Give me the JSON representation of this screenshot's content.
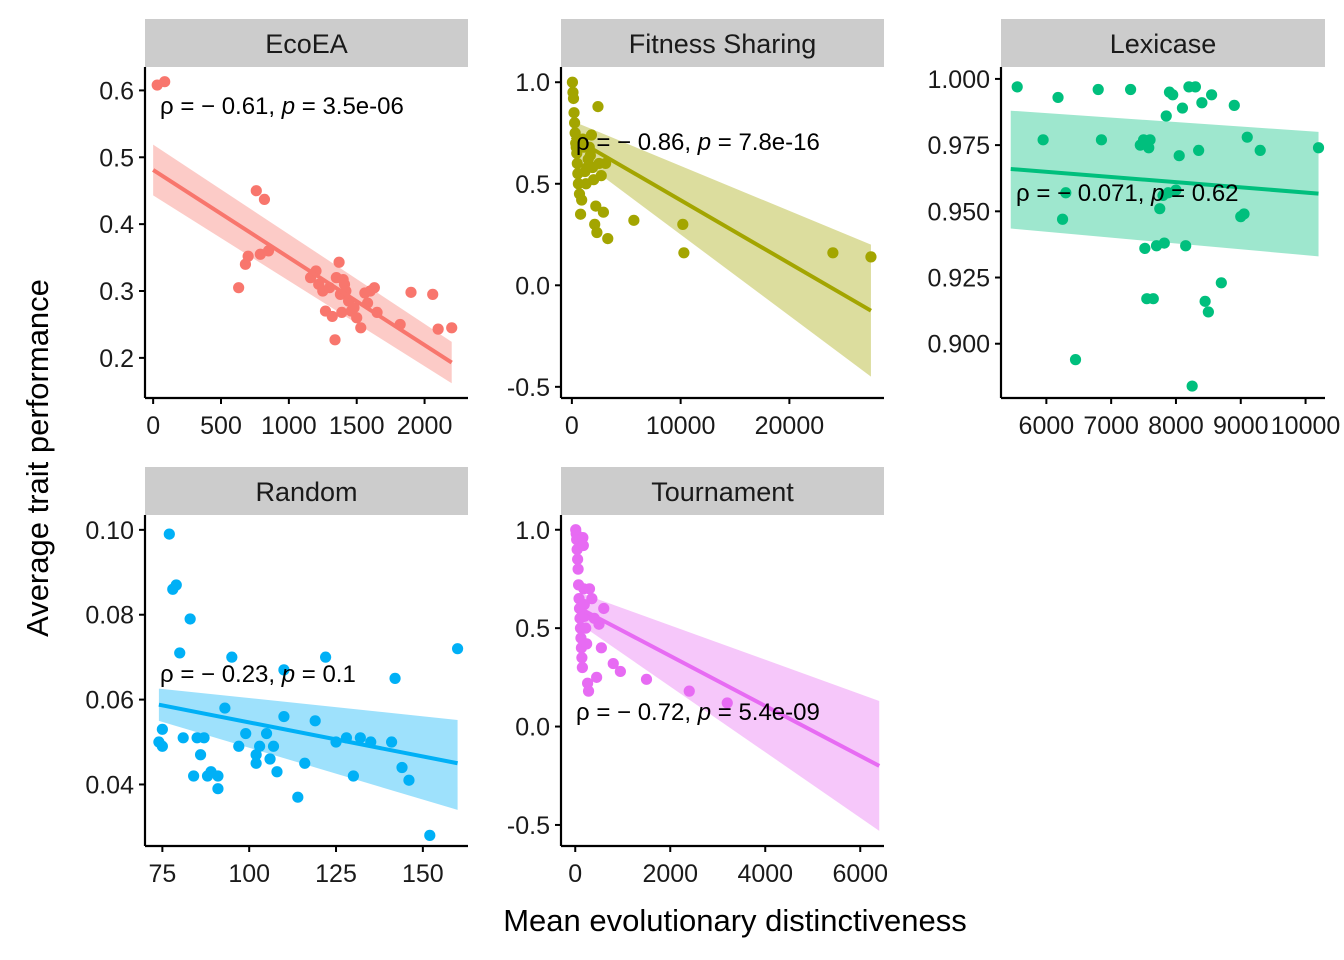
{
  "figure": {
    "xlabel": "Mean evolutionary distinctiveness",
    "ylabel": "Average trait performance",
    "strip_color": "#cccccc"
  },
  "chart_data": [
    {
      "type": "scatter",
      "panel": "EcoEA",
      "color": "#F8766D",
      "xlim": [
        -60,
        2320
      ],
      "ylim": [
        0.14,
        0.635
      ],
      "xticks": [
        0,
        500,
        1000,
        1500,
        2000
      ],
      "yticks": [
        0.2,
        0.3,
        0.4,
        0.5,
        0.6
      ],
      "ytick_labels": [
        "0.2",
        "0.3",
        "0.4",
        "0.5",
        "0.6"
      ],
      "annotation": "ρ = − 0.61, p = 3.5e-06",
      "fit": {
        "x": [
          0,
          2200
        ],
        "y": [
          0.481,
          0.193
        ],
        "ci_lower": [
          0.443,
          0.162
        ],
        "ci_upper": [
          0.519,
          0.224
        ]
      },
      "points": {
        "x": [
          30,
          85,
          630,
          680,
          700,
          760,
          790,
          820,
          850,
          1160,
          1200,
          1220,
          1250,
          1270,
          1300,
          1320,
          1340,
          1350,
          1370,
          1380,
          1390,
          1400,
          1410,
          1420,
          1440,
          1460,
          1480,
          1500,
          1530,
          1560,
          1580,
          1600,
          1630,
          1650,
          1820,
          1900,
          2060,
          2100,
          2200
        ],
        "y": [
          0.608,
          0.613,
          0.305,
          0.34,
          0.352,
          0.45,
          0.355,
          0.437,
          0.36,
          0.32,
          0.33,
          0.31,
          0.3,
          0.27,
          0.305,
          0.262,
          0.227,
          0.32,
          0.343,
          0.295,
          0.268,
          0.317,
          0.31,
          0.3,
          0.285,
          0.27,
          0.275,
          0.26,
          0.245,
          0.297,
          0.282,
          0.3,
          0.305,
          0.268,
          0.25,
          0.298,
          0.295,
          0.243,
          0.245
        ]
      }
    },
    {
      "type": "scatter",
      "panel": "Fitness Sharing",
      "color": "#A3A500",
      "xlim": [
        -1000,
        28700
      ],
      "ylim": [
        -0.555,
        1.075
      ],
      "xticks": [
        0,
        10000,
        20000
      ],
      "yticks": [
        -0.5,
        0.0,
        0.5,
        1.0
      ],
      "ytick_labels": [
        "-0.5",
        "0.0",
        "0.5",
        "1.0"
      ],
      "annotation": "ρ = − 0.86, p = 7.8e-16",
      "fit": {
        "x": [
          0,
          27500
        ],
        "y": [
          0.73,
          -0.125
        ],
        "ci_lower": [
          0.65,
          -0.45
        ],
        "ci_upper": [
          0.81,
          0.2
        ]
      },
      "points": {
        "x": [
          50,
          100,
          150,
          200,
          250,
          300,
          350,
          400,
          450,
          500,
          550,
          600,
          700,
          800,
          900,
          1000,
          1100,
          1200,
          1300,
          1400,
          1500,
          1600,
          1700,
          1800,
          1900,
          2000,
          2100,
          2200,
          2300,
          2400,
          2500,
          2700,
          2900,
          3100,
          3300,
          5700,
          10200,
          10300,
          24000,
          27500
        ],
        "y": [
          1.0,
          0.95,
          0.92,
          0.85,
          0.8,
          0.75,
          0.7,
          0.68,
          0.65,
          0.6,
          0.55,
          0.5,
          0.45,
          0.35,
          0.42,
          0.72,
          0.68,
          0.56,
          0.5,
          0.58,
          0.62,
          0.68,
          0.64,
          0.74,
          0.58,
          0.52,
          0.3,
          0.39,
          0.26,
          0.88,
          0.6,
          0.54,
          0.36,
          0.6,
          0.23,
          0.32,
          0.3,
          0.16,
          0.16,
          0.14
        ]
      }
    },
    {
      "type": "scatter",
      "panel": "Lexicase",
      "color": "#00BF7D",
      "xlim": [
        5300,
        10300
      ],
      "ylim": [
        0.8795,
        1.0045
      ],
      "xticks": [
        6000,
        7000,
        8000,
        9000,
        10000
      ],
      "yticks": [
        0.9,
        0.925,
        0.95,
        0.975,
        1.0
      ],
      "ytick_labels": [
        "0.900",
        "0.925",
        "0.950",
        "0.975",
        "1.000"
      ],
      "annotation": "ρ = − 0.071, p = 0.62",
      "fit": {
        "x": [
          5450,
          10200
        ],
        "y": [
          0.966,
          0.9567
        ],
        "ci_lower": [
          0.9435,
          0.933
        ],
        "ci_upper": [
          0.988,
          0.98
        ]
      },
      "points": {
        "x": [
          5550,
          5950,
          6180,
          6250,
          6300,
          6450,
          6800,
          6850,
          7300,
          7450,
          7500,
          7520,
          7550,
          7580,
          7600,
          7650,
          7700,
          7750,
          7800,
          7820,
          7850,
          7880,
          7900,
          7950,
          8000,
          8050,
          8100,
          8150,
          8200,
          8250,
          8300,
          8350,
          8400,
          8450,
          8500,
          8550,
          8700,
          8900,
          9000,
          9050,
          9100,
          9300,
          10200
        ],
        "y": [
          0.997,
          0.977,
          0.993,
          0.947,
          0.957,
          0.894,
          0.996,
          0.977,
          0.996,
          0.975,
          0.977,
          0.936,
          0.917,
          0.974,
          0.977,
          0.917,
          0.937,
          0.951,
          0.956,
          0.938,
          0.986,
          0.957,
          0.995,
          0.994,
          0.958,
          0.971,
          0.989,
          0.937,
          0.997,
          0.884,
          0.997,
          0.973,
          0.991,
          0.916,
          0.912,
          0.994,
          0.923,
          0.99,
          0.948,
          0.949,
          0.978,
          0.973,
          0.974
        ]
      }
    },
    {
      "type": "scatter",
      "panel": "Random",
      "color": "#00B0F6",
      "xlim": [
        70,
        163
      ],
      "ylim": [
        0.0255,
        0.1035
      ],
      "xticks": [
        75,
        100,
        125,
        150
      ],
      "yticks": [
        0.04,
        0.06,
        0.08,
        0.1
      ],
      "ytick_labels": [
        "0.04",
        "0.06",
        "0.08",
        "0.10"
      ],
      "annotation": "ρ = − 0.23, p = 0.1",
      "fit": {
        "x": [
          74,
          160
        ],
        "y": [
          0.0588,
          0.045
        ],
        "ci_lower": [
          0.055,
          0.034
        ],
        "ci_upper": [
          0.0626,
          0.0552
        ]
      },
      "points": {
        "x": [
          74,
          75,
          75,
          77,
          78,
          79,
          80,
          81,
          83,
          84,
          85,
          86,
          87,
          88,
          89,
          91,
          91,
          93,
          95,
          97,
          99,
          102,
          102,
          103,
          105,
          106,
          107,
          108,
          110,
          110,
          114,
          116,
          119,
          122,
          125,
          128,
          130,
          132,
          135,
          141,
          142,
          144,
          146,
          152,
          160
        ],
        "y": [
          0.05,
          0.049,
          0.053,
          0.099,
          0.086,
          0.087,
          0.071,
          0.051,
          0.079,
          0.042,
          0.051,
          0.047,
          0.051,
          0.042,
          0.043,
          0.039,
          0.042,
          0.058,
          0.07,
          0.049,
          0.052,
          0.047,
          0.045,
          0.049,
          0.052,
          0.046,
          0.049,
          0.043,
          0.067,
          0.056,
          0.037,
          0.045,
          0.055,
          0.07,
          0.05,
          0.051,
          0.042,
          0.051,
          0.05,
          0.05,
          0.065,
          0.044,
          0.041,
          0.028,
          0.072
        ]
      }
    },
    {
      "type": "scatter",
      "panel": "Tournament",
      "color": "#E76BF3",
      "xlim": [
        -300,
        6500
      ],
      "ylim": [
        -0.607,
        1.075
      ],
      "xticks": [
        0,
        2000,
        4000,
        6000
      ],
      "yticks": [
        -0.5,
        0.0,
        0.5,
        1.0
      ],
      "ytick_labels": [
        "-0.5",
        "0.0",
        "0.5",
        "1.0"
      ],
      "annotation": "ρ = − 0.72, p = 5.4e-09",
      "fit": {
        "x": [
          100,
          6400
        ],
        "y": [
          0.6,
          -0.2
        ],
        "ci_lower": [
          0.52,
          -0.53
        ],
        "ci_upper": [
          0.68,
          0.13
        ]
      },
      "points": {
        "x": [
          10,
          20,
          30,
          40,
          50,
          60,
          70,
          80,
          90,
          100,
          110,
          120,
          130,
          140,
          150,
          160,
          170,
          180,
          190,
          200,
          220,
          240,
          260,
          280,
          300,
          350,
          400,
          450,
          500,
          550,
          600,
          800,
          950,
          1500,
          2400,
          3200
        ],
        "y": [
          1.0,
          0.98,
          0.95,
          0.9,
          0.85,
          0.8,
          0.72,
          0.65,
          0.6,
          0.55,
          0.5,
          0.45,
          0.4,
          0.35,
          0.3,
          0.96,
          0.92,
          0.7,
          0.62,
          0.56,
          0.5,
          0.42,
          0.22,
          0.18,
          0.7,
          0.65,
          0.55,
          0.25,
          0.52,
          0.4,
          0.6,
          0.32,
          0.28,
          0.24,
          0.18,
          0.12
        ]
      }
    }
  ]
}
